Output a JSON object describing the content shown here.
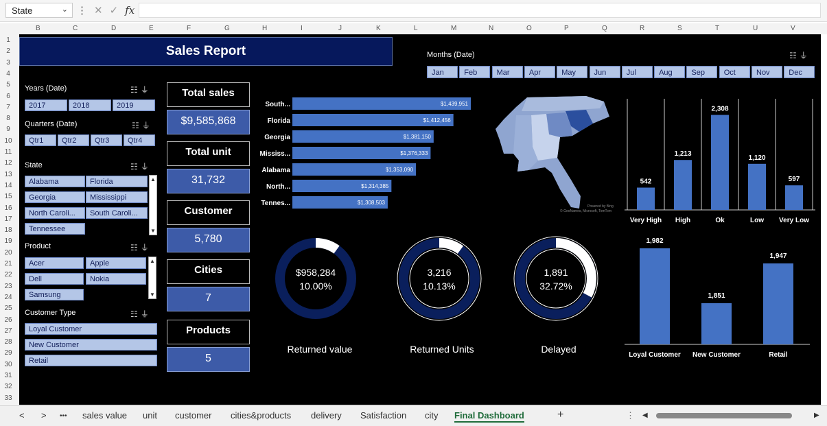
{
  "name_box": {
    "value": "State"
  },
  "formula_bar": {
    "fx": "fx",
    "cancel": "✕",
    "enter": "✓"
  },
  "columns": [
    "B",
    "C",
    "D",
    "E",
    "F",
    "G",
    "H",
    "I",
    "J",
    "K",
    "L",
    "M",
    "N",
    "O",
    "P",
    "Q",
    "R",
    "S",
    "T",
    "U",
    "V"
  ],
  "rows": [
    "1",
    "2",
    "3",
    "4",
    "5",
    "6",
    "7",
    "8",
    "9",
    "10",
    "11",
    "12",
    "13",
    "14",
    "15",
    "16",
    "17",
    "18",
    "19",
    "20",
    "21",
    "22",
    "23",
    "24",
    "25",
    "26",
    "27",
    "28",
    "29",
    "30",
    "31",
    "32",
    "33"
  ],
  "report_title": "Sales Report",
  "slicers": {
    "years": {
      "title": "Years (Date)",
      "items": [
        "2017",
        "2018",
        "2019"
      ]
    },
    "quarters": {
      "title": "Quarters (Date)",
      "items": [
        "Qtr1",
        "Qtr2",
        "Qtr3",
        "Qtr4"
      ]
    },
    "state": {
      "title": "State",
      "items": [
        "Alabama",
        "Florida",
        "Georgia",
        "Mississippi",
        "North Caroli...",
        "South Caroli...",
        "Tennessee"
      ]
    },
    "product": {
      "title": "Product",
      "items": [
        "Acer",
        "Apple",
        "Dell",
        "Nokia",
        "Samsung"
      ]
    },
    "customer_type": {
      "title": "Customer Type",
      "items": [
        "Loyal Customer",
        "New Customer",
        "Retail"
      ]
    },
    "months": {
      "title": "Months (Date)",
      "items": [
        "Jan",
        "Feb",
        "Mar",
        "Apr",
        "May",
        "Jun",
        "Jul",
        "Aug",
        "Sep",
        "Oct",
        "Nov",
        "Dec"
      ]
    }
  },
  "kpis": [
    {
      "label": "Total sales",
      "value": "$9,585,868"
    },
    {
      "label": "Total unit",
      "value": "31,732"
    },
    {
      "label": "Customer",
      "value": "5,780"
    },
    {
      "label": "Cities",
      "value": "7"
    },
    {
      "label": "Products",
      "value": "5"
    }
  ],
  "map": {
    "caption": "© GeoNames, Microsoft, TomTom",
    "powered": "Powered by Bing"
  },
  "chart_data": [
    {
      "type": "bar",
      "orientation": "horizontal",
      "categories": [
        "South...",
        "Florida",
        "Georgia",
        "Mississ...",
        "Alabama",
        "North...",
        "Tennes..."
      ],
      "values": [
        1439951,
        1412456,
        1381150,
        1376333,
        1353090,
        1314385,
        1308503
      ],
      "data_labels": [
        "$1,439,951",
        "$1,412,456",
        "$1,381,150",
        "$1,376,333",
        "$1,353,090",
        "$1,314,385",
        "$1,308,503"
      ],
      "color": "#4472c4"
    },
    {
      "type": "bar",
      "categories": [
        "Very High",
        "High",
        "Ok",
        "Low",
        "Very Low"
      ],
      "values": [
        542,
        1213,
        2308,
        1120,
        597
      ],
      "data_labels": [
        "542",
        "1,213",
        "2,308",
        "1,120",
        "597"
      ],
      "ylim": [
        0,
        2500
      ],
      "color": "#4472c4"
    },
    {
      "type": "bar",
      "categories": [
        "Loyal Customer",
        "New Customer",
        "Retail"
      ],
      "values": [
        1982,
        1851,
        1947
      ],
      "data_labels": [
        "1,982",
        "1,851",
        "1,947"
      ],
      "color": "#4472c4"
    },
    {
      "type": "pie",
      "donuts": [
        {
          "label": "Returned value",
          "value_text": "$958,284",
          "pct_text": "10.00%",
          "fraction": 0.1
        },
        {
          "label": "Returned Units",
          "value_text": "3,216",
          "pct_text": "10.13%",
          "fraction": 0.1013
        },
        {
          "label": "Delayed",
          "value_text": "1,891",
          "pct_text": "32.72%",
          "fraction": 0.3272
        }
      ]
    }
  ],
  "sheet_tabs": [
    "sales value",
    "unit",
    "customer",
    "cities&products",
    "delivery",
    "Satisfaction",
    "city",
    "Final Dashboard"
  ],
  "active_tab": "Final Dashboard",
  "tab_nav": {
    "prev": "<",
    "next": ">",
    "more": "•••",
    "add": "+"
  }
}
